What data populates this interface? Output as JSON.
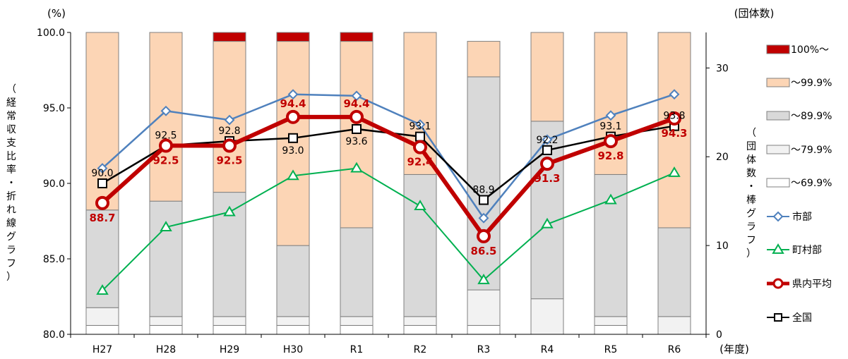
{
  "chart_data": {
    "type": "bar+line",
    "categories": [
      "H27",
      "H28",
      "H29",
      "H30",
      "R1",
      "R2",
      "R3",
      "R4",
      "R5",
      "R6"
    ],
    "left_axis": {
      "unit": "(%)",
      "label_chars": [
        "（",
        "経",
        "常",
        "収",
        "支",
        "比",
        "率",
        "・",
        "折",
        "れ",
        "線",
        "グ",
        "ラ",
        "フ",
        "）"
      ],
      "ylim": [
        80.0,
        100.0
      ],
      "ticks": [
        "100.0",
        "95.0",
        "90.0",
        "85.0",
        "80.0"
      ]
    },
    "right_axis": {
      "unit": "(団体数)",
      "label_chars": [
        "（",
        "団",
        "体",
        "数",
        "・",
        "棒",
        "グ",
        "ラ",
        "フ",
        "）"
      ],
      "ylim": [
        0,
        34
      ],
      "ticks": [
        "30",
        "20",
        "10",
        "0"
      ]
    },
    "x_unit": "(年度)",
    "bar_series": [
      {
        "name": "～69.9%",
        "color": "#ffffff",
        "values": [
          1,
          1,
          1,
          1,
          1,
          1,
          1,
          0,
          1,
          0
        ]
      },
      {
        "name": "～79.9%",
        "color": "#f2f2f2",
        "values": [
          2,
          1,
          1,
          1,
          1,
          1,
          4,
          4,
          1,
          2
        ]
      },
      {
        "name": "～89.9%",
        "color": "#d9d9d9",
        "values": [
          11,
          13,
          14,
          8,
          10,
          16,
          24,
          20,
          16,
          10
        ]
      },
      {
        "name": "～99.9%",
        "color": "#fcd5b5",
        "values": [
          20,
          19,
          17,
          23,
          21,
          16,
          4,
          10,
          16,
          22
        ]
      },
      {
        "name": "100%～",
        "color": "#c00000",
        "values": [
          0,
          0,
          1,
          1,
          1,
          0,
          0,
          0,
          0,
          0
        ]
      }
    ],
    "line_series": [
      {
        "name": "市部",
        "color": "#4f81bd",
        "marker": "diamond",
        "values": [
          91.0,
          94.8,
          94.2,
          95.9,
          95.8,
          93.9,
          87.7,
          92.9,
          94.5,
          95.9
        ]
      },
      {
        "name": "町村部",
        "color": "#00b050",
        "marker": "triangle",
        "values": [
          82.9,
          87.1,
          88.1,
          90.5,
          91.0,
          88.5,
          83.6,
          87.3,
          88.9,
          90.7
        ]
      },
      {
        "name": "県内平均",
        "color": "#c00000",
        "marker": "circle",
        "values": [
          88.7,
          92.5,
          92.5,
          94.4,
          94.4,
          92.4,
          86.5,
          91.3,
          92.8,
          94.3
        ],
        "labels": [
          "88.7",
          "92.5",
          "92.5",
          "94.4",
          "94.4",
          "92.4",
          "86.5",
          "91.3",
          "92.8",
          "94.3"
        ]
      },
      {
        "name": "全国",
        "color": "#000000",
        "marker": "square",
        "values": [
          90.0,
          92.5,
          92.8,
          93.0,
          93.6,
          93.1,
          88.9,
          92.2,
          93.1,
          93.8
        ],
        "labels": [
          "90.0",
          "92.5",
          "92.8",
          "93.0",
          "93.6",
          "93.1",
          "88.9",
          "92.2",
          "93.1",
          "93.8"
        ]
      }
    ],
    "legend_order": [
      "100%～",
      "～99.9%",
      "～89.9%",
      "～79.9%",
      "～69.9%",
      "市部",
      "町村部",
      "県内平均",
      "全国"
    ],
    "legend_position": "right",
    "grid": false
  }
}
